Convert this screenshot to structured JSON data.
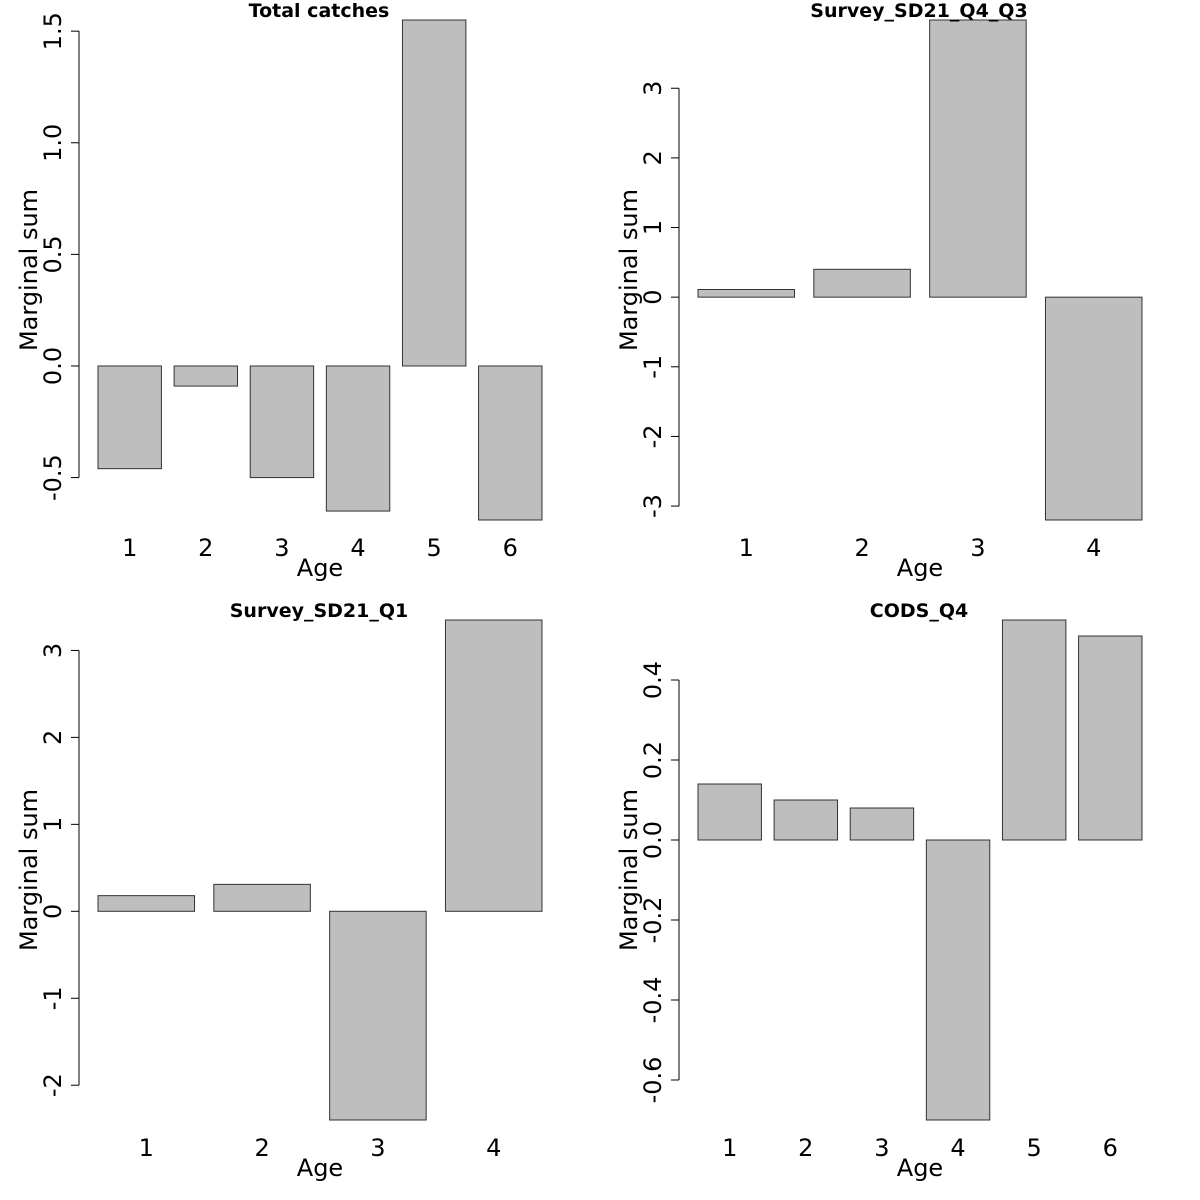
{
  "chart_data": [
    {
      "type": "bar",
      "title": "Total catches",
      "xlabel": "Age",
      "ylabel": "Marginal sum",
      "categories": [
        "1",
        "2",
        "3",
        "4",
        "5",
        "6"
      ],
      "values": [
        -0.46,
        -0.09,
        -0.5,
        -0.65,
        1.55,
        -0.69
      ],
      "ylim": [
        -0.69,
        1.55
      ],
      "yticks": [
        -0.5,
        0.0,
        0.5,
        1.0,
        1.5
      ],
      "ytick_labels": [
        "-0.5",
        "0.0",
        "0.5",
        "1.0",
        "1.5"
      ],
      "bar_color": "#bebebe",
      "grid": false
    },
    {
      "type": "bar",
      "title": "Survey_SD21_Q4_Q3",
      "xlabel": "Age",
      "ylabel": "Marginal sum",
      "categories": [
        "1",
        "2",
        "3",
        "4"
      ],
      "values": [
        0.11,
        0.4,
        3.98,
        -3.2
      ],
      "ylim": [
        -3.2,
        3.98
      ],
      "yticks": [
        -3,
        -2,
        -1,
        0,
        1,
        2,
        3
      ],
      "ytick_labels": [
        "-3",
        "-2",
        "-1",
        "0",
        "1",
        "2",
        "3"
      ],
      "bar_color": "#bebebe",
      "grid": false
    },
    {
      "type": "bar",
      "title": "Survey_SD21_Q1",
      "xlabel": "Age",
      "ylabel": "Marginal sum",
      "categories": [
        "1",
        "2",
        "3",
        "4"
      ],
      "values": [
        0.18,
        0.31,
        -2.4,
        3.35
      ],
      "ylim": [
        -2.4,
        3.35
      ],
      "yticks": [
        -2,
        -1,
        0,
        1,
        2,
        3
      ],
      "ytick_labels": [
        "-2",
        "-1",
        "0",
        "1",
        "2",
        "3"
      ],
      "bar_color": "#bebebe",
      "grid": false
    },
    {
      "type": "bar",
      "title": "CODS_Q4",
      "xlabel": "Age",
      "ylabel": "Marginal sum",
      "categories": [
        "1",
        "2",
        "3",
        "4",
        "5",
        "6"
      ],
      "values": [
        0.14,
        0.1,
        0.08,
        -0.7,
        0.55,
        0.51
      ],
      "ylim": [
        -0.7,
        0.55
      ],
      "yticks": [
        -0.6,
        -0.4,
        -0.2,
        0.0,
        0.2,
        0.4
      ],
      "ytick_labels": [
        "-0.6",
        "-0.4",
        "-0.2",
        "0.0",
        "0.2",
        "0.4"
      ],
      "bar_color": "#bebebe",
      "grid": false
    }
  ]
}
